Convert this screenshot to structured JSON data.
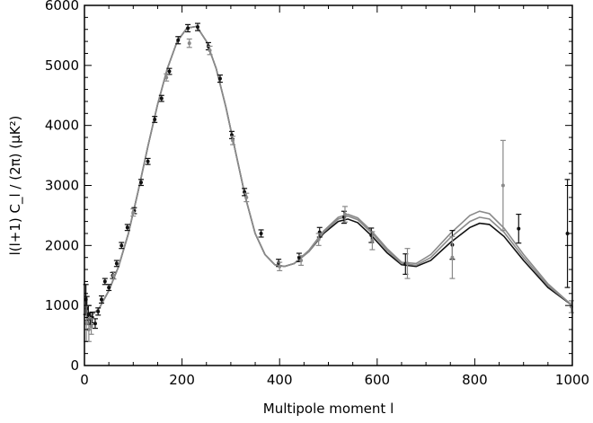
{
  "chart_data": {
    "type": "scatter",
    "title": "",
    "xlabel": "Multipole moment l",
    "ylabel": "l(l+1) C_l / (2π) (μK²)",
    "xlim": [
      0,
      1000
    ],
    "ylim": [
      0,
      6000
    ],
    "grid": false,
    "x_ticks": [
      0,
      200,
      400,
      600,
      800,
      1000
    ],
    "x_tick_labels": [
      "0",
      "200",
      "400",
      "600",
      "800",
      "1000"
    ],
    "y_ticks": [
      0,
      1000,
      2000,
      3000,
      4000,
      5000,
      6000
    ],
    "y_tick_labels": [
      "0",
      "1000",
      "2000",
      "3000",
      "4000",
      "5000",
      "6000"
    ],
    "colors": {
      "black": "#111111",
      "gray": "#8a8a8a",
      "axis": "#000000"
    },
    "model_curves": [
      {
        "color": "#111111",
        "points": [
          [
            2,
            850
          ],
          [
            10,
            800
          ],
          [
            30,
            950
          ],
          [
            50,
            1250
          ],
          [
            70,
            1650
          ],
          [
            90,
            2200
          ],
          [
            110,
            2900
          ],
          [
            130,
            3650
          ],
          [
            150,
            4350
          ],
          [
            170,
            4950
          ],
          [
            190,
            5400
          ],
          [
            210,
            5620
          ],
          [
            230,
            5650
          ],
          [
            250,
            5400
          ],
          [
            270,
            4950
          ],
          [
            290,
            4300
          ],
          [
            310,
            3550
          ],
          [
            330,
            2800
          ],
          [
            350,
            2200
          ],
          [
            370,
            1850
          ],
          [
            390,
            1680
          ],
          [
            410,
            1650
          ],
          [
            430,
            1700
          ],
          [
            460,
            1900
          ],
          [
            490,
            2200
          ],
          [
            520,
            2400
          ],
          [
            540,
            2440
          ],
          [
            560,
            2380
          ],
          [
            590,
            2150
          ],
          [
            620,
            1880
          ],
          [
            650,
            1680
          ],
          [
            680,
            1650
          ],
          [
            710,
            1750
          ],
          [
            750,
            2050
          ],
          [
            790,
            2300
          ],
          [
            810,
            2370
          ],
          [
            830,
            2350
          ],
          [
            860,
            2150
          ],
          [
            900,
            1750
          ],
          [
            950,
            1300
          ],
          [
            1000,
            1000
          ]
        ]
      },
      {
        "color": "#8a8a8a",
        "points": [
          [
            2,
            850
          ],
          [
            10,
            800
          ],
          [
            30,
            950
          ],
          [
            50,
            1250
          ],
          [
            70,
            1650
          ],
          [
            90,
            2200
          ],
          [
            110,
            2900
          ],
          [
            130,
            3650
          ],
          [
            150,
            4350
          ],
          [
            170,
            4950
          ],
          [
            190,
            5400
          ],
          [
            210,
            5620
          ],
          [
            230,
            5650
          ],
          [
            250,
            5400
          ],
          [
            270,
            4950
          ],
          [
            290,
            4300
          ],
          [
            310,
            3550
          ],
          [
            330,
            2800
          ],
          [
            350,
            2200
          ],
          [
            370,
            1850
          ],
          [
            390,
            1680
          ],
          [
            410,
            1650
          ],
          [
            430,
            1700
          ],
          [
            460,
            1900
          ],
          [
            490,
            2220
          ],
          [
            520,
            2440
          ],
          [
            540,
            2490
          ],
          [
            560,
            2430
          ],
          [
            590,
            2200
          ],
          [
            620,
            1920
          ],
          [
            650,
            1700
          ],
          [
            680,
            1670
          ],
          [
            710,
            1800
          ],
          [
            750,
            2130
          ],
          [
            790,
            2400
          ],
          [
            810,
            2470
          ],
          [
            830,
            2440
          ],
          [
            860,
            2220
          ],
          [
            900,
            1800
          ],
          [
            950,
            1330
          ],
          [
            1000,
            1000
          ]
        ]
      },
      {
        "color": "#8a8a8a",
        "points": [
          [
            2,
            850
          ],
          [
            10,
            800
          ],
          [
            30,
            950
          ],
          [
            50,
            1250
          ],
          [
            70,
            1650
          ],
          [
            90,
            2200
          ],
          [
            110,
            2900
          ],
          [
            130,
            3650
          ],
          [
            150,
            4350
          ],
          [
            170,
            4950
          ],
          [
            190,
            5400
          ],
          [
            210,
            5620
          ],
          [
            230,
            5650
          ],
          [
            250,
            5400
          ],
          [
            270,
            4950
          ],
          [
            290,
            4300
          ],
          [
            310,
            3550
          ],
          [
            330,
            2800
          ],
          [
            350,
            2200
          ],
          [
            370,
            1850
          ],
          [
            390,
            1680
          ],
          [
            410,
            1650
          ],
          [
            430,
            1700
          ],
          [
            460,
            1920
          ],
          [
            490,
            2240
          ],
          [
            520,
            2470
          ],
          [
            540,
            2520
          ],
          [
            560,
            2460
          ],
          [
            590,
            2230
          ],
          [
            620,
            1950
          ],
          [
            650,
            1720
          ],
          [
            680,
            1700
          ],
          [
            710,
            1850
          ],
          [
            750,
            2200
          ],
          [
            790,
            2500
          ],
          [
            810,
            2570
          ],
          [
            830,
            2530
          ],
          [
            860,
            2290
          ],
          [
            900,
            1850
          ],
          [
            950,
            1360
          ],
          [
            1000,
            1000
          ]
        ]
      }
    ],
    "series": [
      {
        "color": "#111111",
        "points": [
          [
            3,
            1100,
            250
          ],
          [
            5,
            950,
            200
          ],
          [
            8,
            850,
            150
          ],
          [
            12,
            780,
            100
          ],
          [
            16,
            800,
            90
          ],
          [
            22,
            700,
            80
          ],
          [
            28,
            900,
            60
          ],
          [
            35,
            1100,
            60
          ],
          [
            42,
            1400,
            50
          ],
          [
            50,
            1300,
            50
          ],
          [
            58,
            1500,
            50
          ],
          [
            66,
            1700,
            50
          ],
          [
            76,
            2000,
            50
          ],
          [
            88,
            2300,
            50
          ],
          [
            102,
            2580,
            50
          ],
          [
            116,
            3050,
            50
          ],
          [
            130,
            3400,
            50
          ],
          [
            144,
            4100,
            50
          ],
          [
            158,
            4450,
            50
          ],
          [
            174,
            4900,
            50
          ],
          [
            192,
            5420,
            60
          ],
          [
            212,
            5620,
            60
          ],
          [
            232,
            5640,
            60
          ],
          [
            254,
            5320,
            60
          ],
          [
            278,
            4780,
            60
          ],
          [
            302,
            3840,
            60
          ],
          [
            328,
            2890,
            60
          ],
          [
            362,
            2200,
            60
          ],
          [
            398,
            1710,
            60
          ],
          [
            440,
            1800,
            70
          ],
          [
            482,
            2220,
            80
          ],
          [
            532,
            2470,
            100
          ],
          [
            588,
            2170,
            120
          ],
          [
            658,
            1690,
            170
          ],
          [
            754,
            2010,
            240
          ],
          [
            890,
            2280,
            240
          ],
          [
            990,
            2200,
            900
          ]
        ]
      },
      {
        "color": "#8a8a8a",
        "points": [
          [
            4,
            700,
            300
          ],
          [
            9,
            600,
            200
          ],
          [
            14,
            650,
            130
          ],
          [
            60,
            1500,
            60
          ],
          [
            100,
            2550,
            60
          ],
          [
            168,
            4800,
            60
          ],
          [
            215,
            5370,
            70
          ],
          [
            257,
            5250,
            70
          ],
          [
            304,
            3750,
            70
          ],
          [
            332,
            2800,
            70
          ],
          [
            400,
            1650,
            70
          ],
          [
            444,
            1750,
            80
          ],
          [
            480,
            2100,
            100
          ],
          [
            534,
            2520,
            130
          ],
          [
            590,
            2080,
            150
          ],
          [
            662,
            1700,
            250
          ],
          [
            754,
            1800,
            350
          ],
          [
            858,
            3000,
            750
          ],
          [
            998,
            980,
            100
          ]
        ]
      }
    ]
  }
}
